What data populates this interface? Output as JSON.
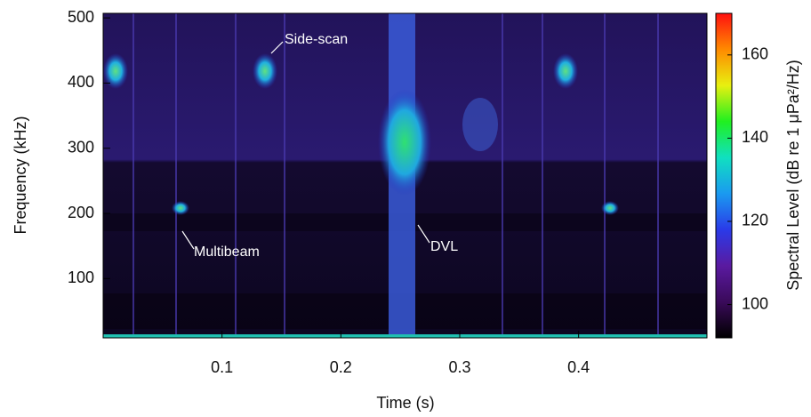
{
  "chart_data": {
    "type": "spectrogram",
    "xlabel": "Time (s)",
    "ylabel": "Frequency (kHz)",
    "xlim": [
      0,
      0.508
    ],
    "xticks": [
      0.1,
      0.2,
      0.3,
      0.4
    ],
    "ylim": [
      9,
      507
    ],
    "yticks": [
      100,
      200,
      300,
      400,
      500
    ],
    "colorbar": {
      "label": "Spectral Level (dB re 1 μPa²/Hz)",
      "lim": [
        92,
        170
      ],
      "ticks": [
        100,
        120,
        140,
        160
      ],
      "colormap": [
        "#000000",
        "#3a0a5a",
        "#5a1aa0",
        "#2a3ae8",
        "#1a9af0",
        "#10e0c0",
        "#20f020",
        "#e8f010",
        "#ff8a00",
        "#ff1010"
      ]
    },
    "annotations": [
      "Side-scan",
      "Multibeam",
      "DVL"
    ]
  }
}
